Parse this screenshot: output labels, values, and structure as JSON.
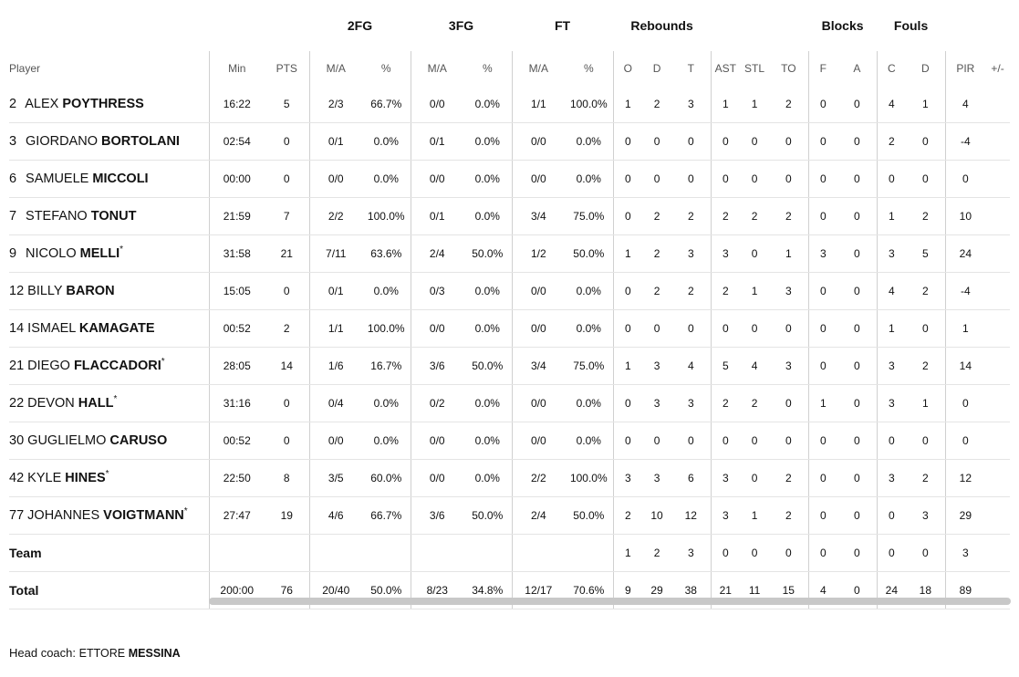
{
  "groups": {
    "fg2": "2FG",
    "fg3": "3FG",
    "ft": "FT",
    "rebounds": "Rebounds",
    "blocks": "Blocks",
    "fouls": "Fouls"
  },
  "columns": {
    "player": "Player",
    "min": "Min",
    "pts": "PTS",
    "fg2_ma": "M/A",
    "fg2_pct": "%",
    "fg3_ma": "M/A",
    "fg3_pct": "%",
    "ft_ma": "M/A",
    "ft_pct": "%",
    "reb_o": "O",
    "reb_d": "D",
    "reb_t": "T",
    "ast": "AST",
    "stl": "STL",
    "to": "TO",
    "blk_f": "F",
    "blk_a": "A",
    "foul_c": "C",
    "foul_d": "D",
    "pir": "PIR",
    "pm": "+/-"
  },
  "players": [
    {
      "num": "2",
      "first": "ALEX",
      "last": "POYTHRESS",
      "starter": "",
      "min": "16:22",
      "pts": "5",
      "fg2": "2/3",
      "fg2p": "66.7%",
      "fg3": "0/0",
      "fg3p": "0.0%",
      "ft": "1/1",
      "ftp": "100.0%",
      "o": "1",
      "d": "2",
      "t": "3",
      "ast": "1",
      "stl": "1",
      "to": "2",
      "bf": "0",
      "ba": "0",
      "fc": "4",
      "fd": "1",
      "pir": "4",
      "pm": ""
    },
    {
      "num": "3",
      "first": "GIORDANO",
      "last": "BORTOLANI",
      "starter": "",
      "min": "02:54",
      "pts": "0",
      "fg2": "0/1",
      "fg2p": "0.0%",
      "fg3": "0/1",
      "fg3p": "0.0%",
      "ft": "0/0",
      "ftp": "0.0%",
      "o": "0",
      "d": "0",
      "t": "0",
      "ast": "0",
      "stl": "0",
      "to": "0",
      "bf": "0",
      "ba": "0",
      "fc": "2",
      "fd": "0",
      "pir": "-4",
      "pm": ""
    },
    {
      "num": "6",
      "first": "SAMUELE",
      "last": "MICCOLI",
      "starter": "",
      "min": "00:00",
      "pts": "0",
      "fg2": "0/0",
      "fg2p": "0.0%",
      "fg3": "0/0",
      "fg3p": "0.0%",
      "ft": "0/0",
      "ftp": "0.0%",
      "o": "0",
      "d": "0",
      "t": "0",
      "ast": "0",
      "stl": "0",
      "to": "0",
      "bf": "0",
      "ba": "0",
      "fc": "0",
      "fd": "0",
      "pir": "0",
      "pm": ""
    },
    {
      "num": "7",
      "first": "STEFANO",
      "last": "TONUT",
      "starter": "",
      "min": "21:59",
      "pts": "7",
      "fg2": "2/2",
      "fg2p": "100.0%",
      "fg3": "0/1",
      "fg3p": "0.0%",
      "ft": "3/4",
      "ftp": "75.0%",
      "o": "0",
      "d": "2",
      "t": "2",
      "ast": "2",
      "stl": "2",
      "to": "2",
      "bf": "0",
      "ba": "0",
      "fc": "1",
      "fd": "2",
      "pir": "10",
      "pm": ""
    },
    {
      "num": "9",
      "first": "NICOLO",
      "last": "MELLI",
      "starter": "*",
      "min": "31:58",
      "pts": "21",
      "fg2": "7/11",
      "fg2p": "63.6%",
      "fg3": "2/4",
      "fg3p": "50.0%",
      "ft": "1/2",
      "ftp": "50.0%",
      "o": "1",
      "d": "2",
      "t": "3",
      "ast": "3",
      "stl": "0",
      "to": "1",
      "bf": "3",
      "ba": "0",
      "fc": "3",
      "fd": "5",
      "pir": "24",
      "pm": ""
    },
    {
      "num": "12",
      "first": "BILLY",
      "last": "BARON",
      "starter": "",
      "min": "15:05",
      "pts": "0",
      "fg2": "0/1",
      "fg2p": "0.0%",
      "fg3": "0/3",
      "fg3p": "0.0%",
      "ft": "0/0",
      "ftp": "0.0%",
      "o": "0",
      "d": "2",
      "t": "2",
      "ast": "2",
      "stl": "1",
      "to": "3",
      "bf": "0",
      "ba": "0",
      "fc": "4",
      "fd": "2",
      "pir": "-4",
      "pm": ""
    },
    {
      "num": "14",
      "first": "ISMAEL",
      "last": "KAMAGATE",
      "starter": "",
      "min": "00:52",
      "pts": "2",
      "fg2": "1/1",
      "fg2p": "100.0%",
      "fg3": "0/0",
      "fg3p": "0.0%",
      "ft": "0/0",
      "ftp": "0.0%",
      "o": "0",
      "d": "0",
      "t": "0",
      "ast": "0",
      "stl": "0",
      "to": "0",
      "bf": "0",
      "ba": "0",
      "fc": "1",
      "fd": "0",
      "pir": "1",
      "pm": ""
    },
    {
      "num": "21",
      "first": "DIEGO",
      "last": "FLACCADORI",
      "starter": "*",
      "min": "28:05",
      "pts": "14",
      "fg2": "1/6",
      "fg2p": "16.7%",
      "fg3": "3/6",
      "fg3p": "50.0%",
      "ft": "3/4",
      "ftp": "75.0%",
      "o": "1",
      "d": "3",
      "t": "4",
      "ast": "5",
      "stl": "4",
      "to": "3",
      "bf": "0",
      "ba": "0",
      "fc": "3",
      "fd": "2",
      "pir": "14",
      "pm": ""
    },
    {
      "num": "22",
      "first": "DEVON",
      "last": "HALL",
      "starter": "*",
      "min": "31:16",
      "pts": "0",
      "fg2": "0/4",
      "fg2p": "0.0%",
      "fg3": "0/2",
      "fg3p": "0.0%",
      "ft": "0/0",
      "ftp": "0.0%",
      "o": "0",
      "d": "3",
      "t": "3",
      "ast": "2",
      "stl": "2",
      "to": "0",
      "bf": "1",
      "ba": "0",
      "fc": "3",
      "fd": "1",
      "pir": "0",
      "pm": ""
    },
    {
      "num": "30",
      "first": "GUGLIELMO",
      "last": "CARUSO",
      "starter": "",
      "min": "00:52",
      "pts": "0",
      "fg2": "0/0",
      "fg2p": "0.0%",
      "fg3": "0/0",
      "fg3p": "0.0%",
      "ft": "0/0",
      "ftp": "0.0%",
      "o": "0",
      "d": "0",
      "t": "0",
      "ast": "0",
      "stl": "0",
      "to": "0",
      "bf": "0",
      "ba": "0",
      "fc": "0",
      "fd": "0",
      "pir": "0",
      "pm": ""
    },
    {
      "num": "42",
      "first": "KYLE",
      "last": "HINES",
      "starter": "*",
      "min": "22:50",
      "pts": "8",
      "fg2": "3/5",
      "fg2p": "60.0%",
      "fg3": "0/0",
      "fg3p": "0.0%",
      "ft": "2/2",
      "ftp": "100.0%",
      "o": "3",
      "d": "3",
      "t": "6",
      "ast": "3",
      "stl": "0",
      "to": "2",
      "bf": "0",
      "ba": "0",
      "fc": "3",
      "fd": "2",
      "pir": "12",
      "pm": ""
    },
    {
      "num": "77",
      "first": "JOHANNES",
      "last": "VOIGTMANN",
      "starter": "*",
      "min": "27:47",
      "pts": "19",
      "fg2": "4/6",
      "fg2p": "66.7%",
      "fg3": "3/6",
      "fg3p": "50.0%",
      "ft": "2/4",
      "ftp": "50.0%",
      "o": "2",
      "d": "10",
      "t": "12",
      "ast": "3",
      "stl": "1",
      "to": "2",
      "bf": "0",
      "ba": "0",
      "fc": "0",
      "fd": "3",
      "pir": "29",
      "pm": ""
    }
  ],
  "team": {
    "label": "Team",
    "o": "1",
    "d": "2",
    "t": "3",
    "ast": "0",
    "stl": "0",
    "to": "0",
    "bf": "0",
    "ba": "0",
    "fc": "0",
    "fd": "0",
    "pir": "3"
  },
  "total": {
    "label": "Total",
    "min": "200:00",
    "pts": "76",
    "fg2": "20/40",
    "fg2p": "50.0%",
    "fg3": "8/23",
    "fg3p": "34.8%",
    "ft": "12/17",
    "ftp": "70.6%",
    "o": "9",
    "d": "29",
    "t": "38",
    "ast": "21",
    "stl": "11",
    "to": "15",
    "bf": "4",
    "ba": "0",
    "fc": "24",
    "fd": "18",
    "pir": "89"
  },
  "coach": {
    "label": "Head coach:",
    "first": "ETTORE",
    "last": "MESSINA"
  }
}
